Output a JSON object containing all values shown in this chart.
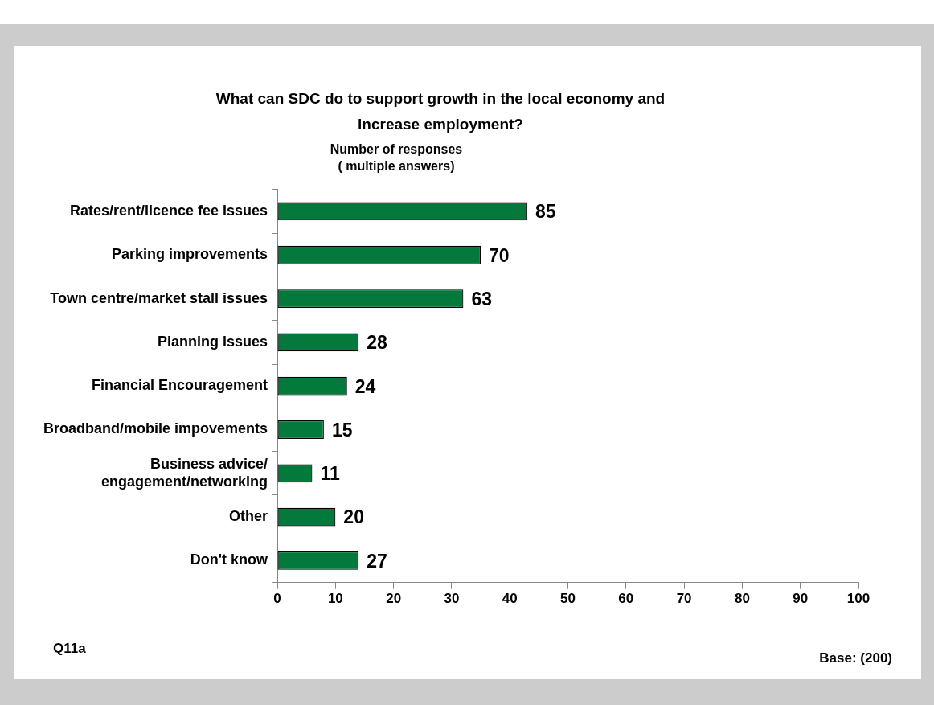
{
  "chart_data": {
    "type": "bar",
    "orientation": "horizontal",
    "title": "What can SDC do to support growth in the local economy and increase employment?",
    "ylabel": "Number of responses\n( multiple answers)",
    "categories": [
      "Rates/rent/licence fee issues",
      "Parking improvements",
      "Town centre/market stall issues",
      "Planning issues",
      "Financial Encouragement",
      "Broadband/mobile impovements",
      "Business advice/\nengagement/networking",
      "Other",
      "Don't know"
    ],
    "values": [
      43,
      35,
      32,
      14,
      12,
      8,
      6,
      10,
      14
    ],
    "color": "#037a3c",
    "xlim": [
      0,
      100
    ],
    "xticks": [
      0,
      10,
      20,
      30,
      40,
      50,
      60,
      70,
      80,
      90,
      100
    ],
    "grid": false,
    "legend": false,
    "annotations": [
      "Q11a",
      "Base: (200)",
      {
        "text": "85",
        "x": 43,
        "y": "Rates/rent/licence fee issues"
      },
      {
        "text": "70",
        "x": 35,
        "y": "Parking improvements"
      },
      {
        "text": "63",
        "x": 32,
        "y": "Town centre/market stall issues"
      },
      {
        "text": "28",
        "x": 14,
        "y": "Planning issues"
      },
      {
        "text": "24",
        "x": 12,
        "y": "Financial Encouragement"
      },
      {
        "text": "15",
        "x": 8,
        "y": "Broadband/mobile impovements"
      },
      {
        "text": "11",
        "x": 6,
        "y": "Business advice/\nengagement/networking"
      },
      {
        "text": "20",
        "x": 10,
        "y": "Other"
      },
      {
        "text": "27",
        "x": 14,
        "y": "Don't know"
      }
    ]
  }
}
